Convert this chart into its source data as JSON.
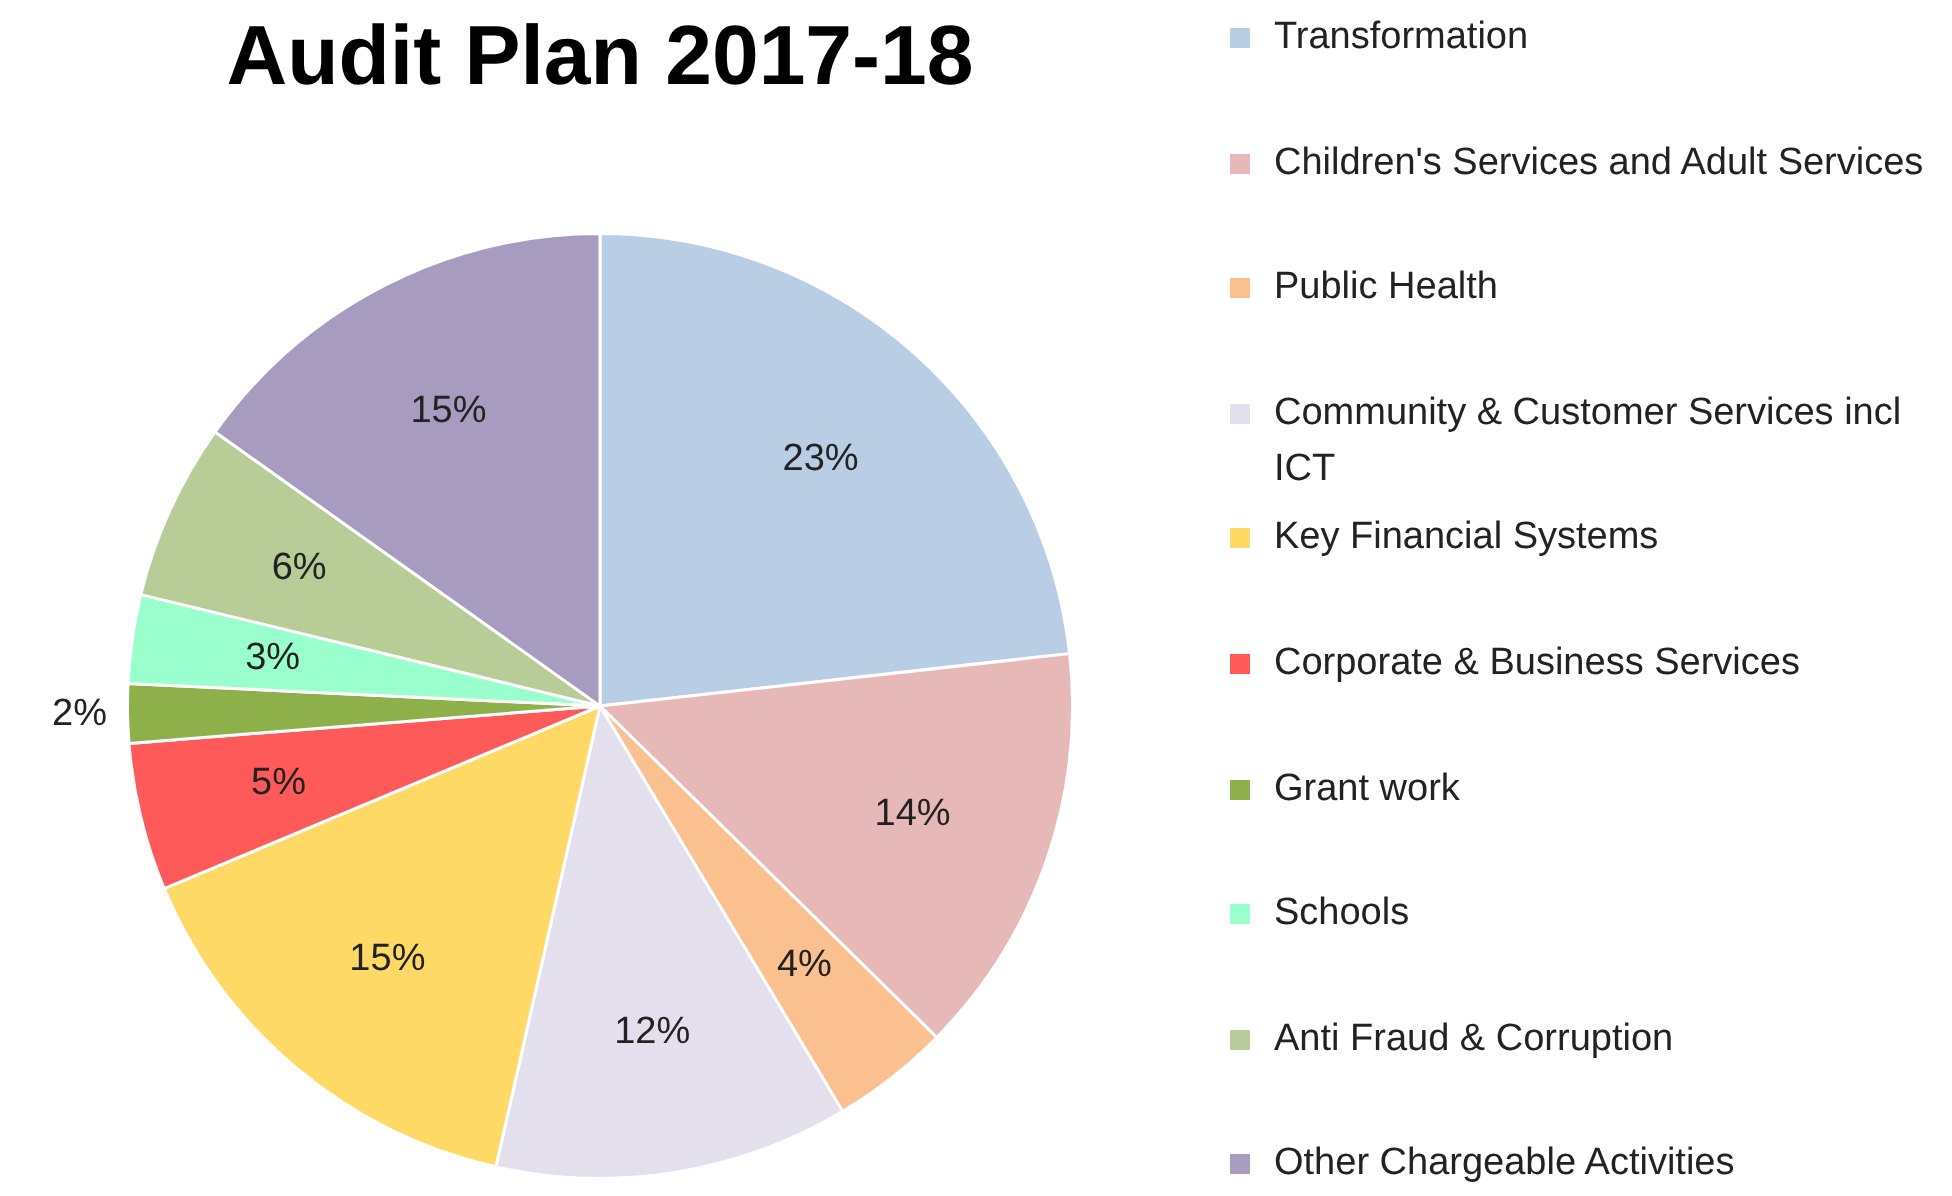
{
  "chart_data": {
    "type": "pie",
    "title": "Audit Plan 2017-18",
    "categories": [
      "Transformation",
      "Children's Services and Adult Services",
      "Public Health",
      "Community & Customer Services incl ICT",
      "Key Financial Systems",
      "Corporate & Business Services",
      "Grant work",
      "Schools",
      "Anti Fraud & Corruption",
      "Other Chargeable Activities"
    ],
    "values": [
      23,
      14,
      4,
      12,
      15,
      5,
      2,
      3,
      6,
      15
    ],
    "value_labels": [
      "23%",
      "14%",
      "4%",
      "12%",
      "15%",
      "5%",
      "2%",
      "3%",
      "6%",
      "15%"
    ],
    "colors": [
      "#b9cde5",
      "#e6b9b8",
      "#fac090",
      "#e3dfec",
      "#ffd966",
      "#ff5a5a",
      "#8db04a",
      "#99ffcc",
      "#b7cc96",
      "#a79bbf"
    ],
    "legend": "right"
  }
}
